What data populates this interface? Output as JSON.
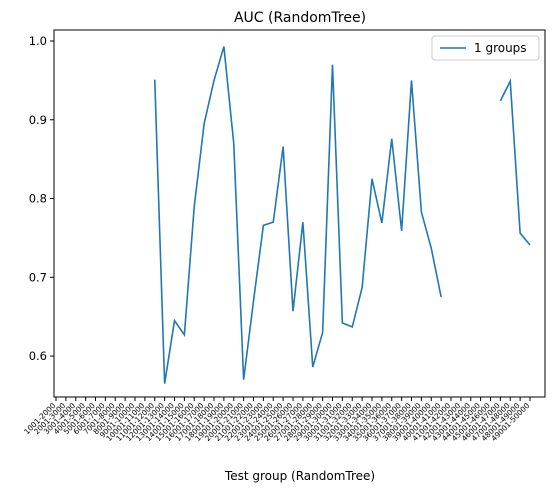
{
  "chart_data": {
    "type": "line",
    "title": "AUC (RandomTree)",
    "xlabel": "Test group (RandomTree)",
    "categories": [
      "1001-2000",
      "2001-3000",
      "3001-4000",
      "4001-5000",
      "5001-6000",
      "6001-7000",
      "7001-8000",
      "8001-9000",
      "9001-10000",
      "10001-11000",
      "11001-12000",
      "12001-13000",
      "13001-14000",
      "14001-15000",
      "15001-16000",
      "16001-17000",
      "17001-18000",
      "18001-19000",
      "19001-20000",
      "20001-21000",
      "21001-22000",
      "22001-23000",
      "23001-24000",
      "24001-25000",
      "25001-26000",
      "26001-27000",
      "27001-28000",
      "28001-29000",
      "29001-30000",
      "30001-31000",
      "31001-32000",
      "32001-33000",
      "33001-34000",
      "34001-35000",
      "35001-36000",
      "36001-37000",
      "37001-38000",
      "38001-39000",
      "39001-40000",
      "40001-41000",
      "41001-42000",
      "42001-43000",
      "43001-44000",
      "44001-45000",
      "45001-46000",
      "46001-47000",
      "47001-48000",
      "48001-49000",
      "49001-50000"
    ],
    "series": [
      {
        "name": "1 groups",
        "color": "#1f77b4",
        "values": [
          null,
          null,
          null,
          null,
          null,
          null,
          null,
          null,
          null,
          null,
          0.951,
          0.565,
          0.645,
          0.627,
          0.79,
          0.895,
          0.95,
          0.993,
          0.87,
          0.57,
          0.67,
          0.766,
          0.77,
          0.866,
          0.657,
          0.77,
          0.586,
          0.63,
          0.97,
          0.642,
          0.637,
          0.687,
          0.825,
          0.769,
          0.876,
          0.759,
          0.95,
          0.783,
          0.737,
          0.675,
          null,
          null,
          null,
          null,
          null,
          0.924,
          0.949,
          0.756,
          0.741
        ]
      }
    ],
    "ylim": [
      0.548,
      1.014
    ],
    "yticks": [
      0.6,
      0.7,
      0.8,
      0.9,
      {
        "value": 1.0,
        "label": "1.0"
      }
    ],
    "legend": "upper right"
  }
}
